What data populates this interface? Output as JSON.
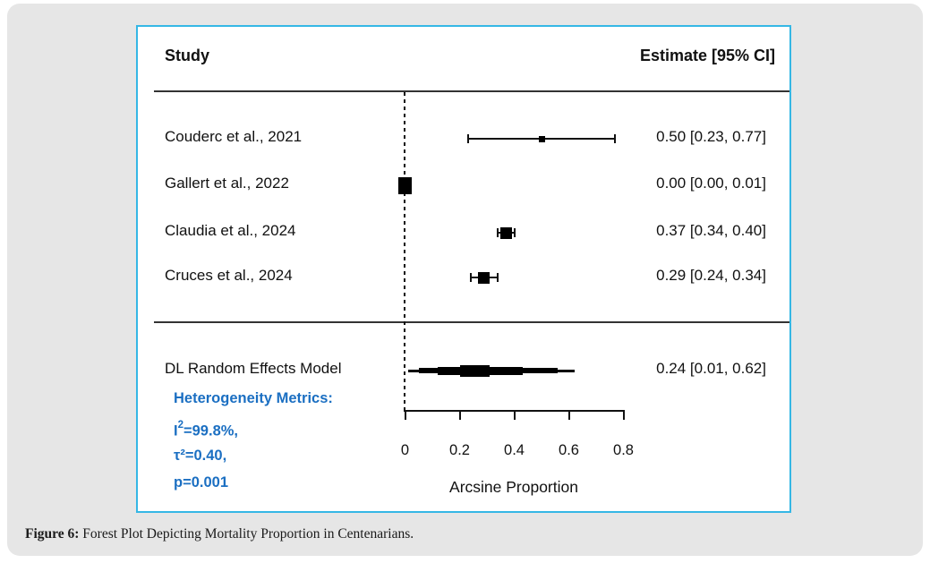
{
  "figure": {
    "header": {
      "study_col": "Study",
      "estimate_col": "Estimate [95% CI]"
    },
    "axis": {
      "label": "Arcsine Proportion",
      "tick_labels": [
        "0",
        "0.2",
        "0.4",
        "0.6",
        "0.8"
      ]
    },
    "heterogeneity": {
      "title": "Heterogeneity Metrics:",
      "i2_base": "I",
      "i2_sup": "2",
      "i2_rest": "=99.8%,",
      "tau2": "τ²=0.40,",
      "p": "p=0.001"
    },
    "colors": {
      "box_border": "#35b7e5",
      "metrics_text": "#1b6fc2",
      "marker": "#000000"
    }
  },
  "caption": {
    "label": "Figure 6:",
    "text": " Forest Plot Depicting Mortality Proportion in Centenarians."
  },
  "chart_data": {
    "type": "forest",
    "xlabel": "Arcsine Proportion",
    "xlim": [
      0,
      0.8
    ],
    "xticks": [
      0,
      0.2,
      0.4,
      0.6,
      0.8
    ],
    "zero_reference_line": 0,
    "studies": [
      {
        "label": "Couderc et al., 2021",
        "estimate": 0.5,
        "ci": [
          0.23,
          0.77
        ],
        "estimate_label": "0.50 [0.23, 0.77]",
        "marker": {
          "w": 7,
          "h": 7
        }
      },
      {
        "label": "Gallert et al., 2022",
        "estimate": 0.0,
        "ci": [
          0.0,
          0.01
        ],
        "estimate_label": "0.00 [0.00, 0.01]",
        "marker": {
          "w": 15,
          "h": 19
        }
      },
      {
        "label": "Claudia et al., 2024",
        "estimate": 0.37,
        "ci": [
          0.34,
          0.4
        ],
        "estimate_label": "0.37 [0.34, 0.40]",
        "marker": {
          "w": 13,
          "h": 13
        }
      },
      {
        "label": "Cruces et al., 2024",
        "estimate": 0.29,
        "ci": [
          0.24,
          0.34
        ],
        "estimate_label": "0.29 [0.24, 0.34]",
        "marker": {
          "w": 13,
          "h": 13
        }
      }
    ],
    "summary": {
      "label": "DL Random Effects Model",
      "estimate": 0.24,
      "ci": [
        0.01,
        0.62
      ],
      "estimate_label": "0.24 [0.01, 0.62]",
      "layers": [
        {
          "from": 0.01,
          "to": 0.62,
          "h": 3
        },
        {
          "from": 0.05,
          "to": 0.56,
          "h": 6
        },
        {
          "from": 0.12,
          "to": 0.43,
          "h": 9
        },
        {
          "from": 0.2,
          "to": 0.31,
          "h": 13
        }
      ]
    },
    "heterogeneity": {
      "I2_percent": 99.8,
      "tau2": 0.4,
      "p": 0.001
    }
  }
}
